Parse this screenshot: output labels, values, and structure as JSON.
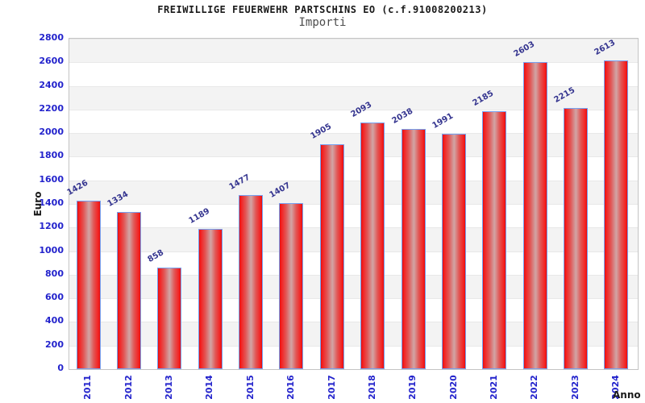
{
  "chart_data": {
    "type": "bar",
    "title": "FREIWILLIGE FEUERWEHR PARTSCHINS EO (c.f.91008200213)",
    "subtitle": "Importi",
    "xlabel": "Anno",
    "ylabel": "Euro",
    "categories": [
      "2011",
      "2012",
      "2013",
      "2014",
      "2015",
      "2016",
      "2017",
      "2018",
      "2019",
      "2020",
      "2021",
      "2022",
      "2023",
      "2024"
    ],
    "values": [
      1426,
      1334,
      858,
      1189,
      1477,
      1407,
      1905,
      2093,
      2038,
      1991,
      2185,
      2603,
      2215,
      2613
    ],
    "ylim": [
      0,
      2800
    ],
    "ytick_step": 200,
    "grid": "alternating horizontal bands every 200 units, light gray and white",
    "legend": "none",
    "bar_labels_rotation_deg": -30,
    "xtick_rotation_deg": -90,
    "colors": {
      "bar_fill_edge": "#e40e0e",
      "bar_fill_center": "#d2a0a0",
      "bar_border": "#76a0f0",
      "value_label": "#34348f",
      "axis_tick_text": "#2323cc",
      "band_gray": "#f3f3f3",
      "plot_border": "#c4c4c4",
      "title_text": "#1a1a1a",
      "subtitle_text": "#4d4d4d"
    }
  }
}
